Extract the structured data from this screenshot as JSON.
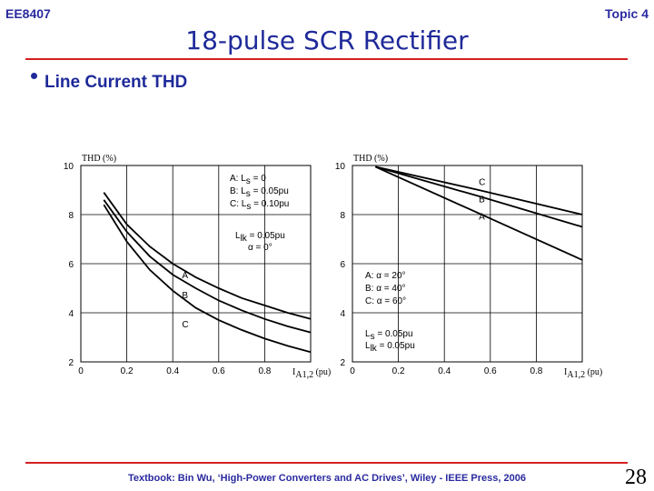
{
  "header": {
    "course": "EE8407",
    "topic": "Topic 4"
  },
  "title": "18-pulse SCR Rectifier",
  "bullet": "Line Current THD",
  "footer": "Textbook: Bin Wu, ‘High-Power Converters and AC Drives’, Wiley - IEEE Press, 2006",
  "page_number": "28",
  "chart_data": [
    {
      "type": "line",
      "ylabel": "THD (%)",
      "xlabel_main": "I",
      "xlabel_sub": "A1,2",
      "xlabel_unit": "(pu)",
      "xlim": [
        0,
        1.0
      ],
      "ylim": [
        2,
        10
      ],
      "xticks": [
        {
          "v": 0,
          "t": "0"
        },
        {
          "v": 0.2,
          "t": "0.2"
        },
        {
          "v": 0.4,
          "t": "0.4"
        },
        {
          "v": 0.6,
          "t": "0.6"
        },
        {
          "v": 0.8,
          "t": "0.8"
        }
      ],
      "yticks": [
        {
          "v": 2,
          "t": "2"
        },
        {
          "v": 4,
          "t": "4"
        },
        {
          "v": 6,
          "t": "6"
        },
        {
          "v": 8,
          "t": "8"
        },
        {
          "v": 10,
          "t": "10"
        }
      ],
      "series": [
        {
          "name": "A",
          "x": [
            0.1,
            0.2,
            0.3,
            0.4,
            0.5,
            0.6,
            0.7,
            0.8,
            0.9,
            1.0
          ],
          "y": [
            8.9,
            7.6,
            6.7,
            6.0,
            5.45,
            5.0,
            4.6,
            4.3,
            4.0,
            3.75
          ]
        },
        {
          "name": "B",
          "x": [
            0.1,
            0.2,
            0.3,
            0.4,
            0.5,
            0.6,
            0.7,
            0.8,
            0.9,
            1.0
          ],
          "y": [
            8.6,
            7.3,
            6.3,
            5.55,
            5.0,
            4.5,
            4.1,
            3.75,
            3.45,
            3.2
          ]
        },
        {
          "name": "C",
          "x": [
            0.1,
            0.2,
            0.3,
            0.4,
            0.5,
            0.6,
            0.7,
            0.8,
            0.9,
            1.0
          ],
          "y": [
            8.4,
            6.9,
            5.75,
            4.9,
            4.2,
            3.7,
            3.3,
            2.95,
            2.65,
            2.4
          ]
        }
      ],
      "curve_labels": [
        {
          "t": "A",
          "x": 0.44,
          "y": 5.4
        },
        {
          "t": "B",
          "x": 0.44,
          "y": 4.6
        },
        {
          "t": "C",
          "x": 0.44,
          "y": 3.4
        }
      ],
      "legend": [
        {
          "key": "A:",
          "sym": "L",
          "sub": "s",
          "val": "= 0"
        },
        {
          "key": "B:",
          "sym": "L",
          "sub": "s",
          "val": "= 0.05pu"
        },
        {
          "key": "C:",
          "sym": "L",
          "sub": "s",
          "val": "= 0.10pu"
        }
      ],
      "conditions": [
        {
          "sym": "L",
          "sub": "lk",
          "val": "= 0.05pu"
        },
        {
          "sym": "α",
          "sub": "",
          "val": "= 0°"
        }
      ]
    },
    {
      "type": "line",
      "ylabel": "THD (%)",
      "xlabel_main": "I",
      "xlabel_sub": "A1,2",
      "xlabel_unit": "(pu)",
      "xlim": [
        0,
        1.0
      ],
      "ylim": [
        2,
        10
      ],
      "xticks": [
        {
          "v": 0,
          "t": "0"
        },
        {
          "v": 0.2,
          "t": "0.2"
        },
        {
          "v": 0.4,
          "t": "0.4"
        },
        {
          "v": 0.6,
          "t": "0.6"
        },
        {
          "v": 0.8,
          "t": "0.8"
        }
      ],
      "yticks": [
        {
          "v": 2,
          "t": "2"
        },
        {
          "v": 4,
          "t": "4"
        },
        {
          "v": 6,
          "t": "6"
        },
        {
          "v": 8,
          "t": "8"
        },
        {
          "v": 10,
          "t": "10"
        }
      ],
      "series": [
        {
          "name": "A",
          "x": [
            0.1,
            0.55,
            1.0
          ],
          "y": [
            9.95,
            8.05,
            6.15
          ]
        },
        {
          "name": "B",
          "x": [
            0.1,
            0.55,
            1.0
          ],
          "y": [
            9.95,
            8.75,
            7.5
          ]
        },
        {
          "name": "C",
          "x": [
            0.1,
            0.55,
            1.0
          ],
          "y": [
            9.95,
            9.0,
            8.0
          ]
        }
      ],
      "curve_labels": [
        {
          "t": "C",
          "x": 0.55,
          "y": 9.2
        },
        {
          "t": "B",
          "x": 0.55,
          "y": 8.5
        },
        {
          "t": "A",
          "x": 0.55,
          "y": 7.8
        }
      ],
      "legend": [
        {
          "key": "A:",
          "sym": "α",
          "sub": "",
          "val": "= 20°"
        },
        {
          "key": "B:",
          "sym": "α",
          "sub": "",
          "val": "= 40°"
        },
        {
          "key": "C:",
          "sym": "α",
          "sub": "",
          "val": "= 60°"
        }
      ],
      "conditions": [
        {
          "sym": "L",
          "sub": "s",
          "val": "= 0.05pu"
        },
        {
          "sym": "L",
          "sub": "lk",
          "val": "= 0.05pu"
        }
      ]
    }
  ]
}
